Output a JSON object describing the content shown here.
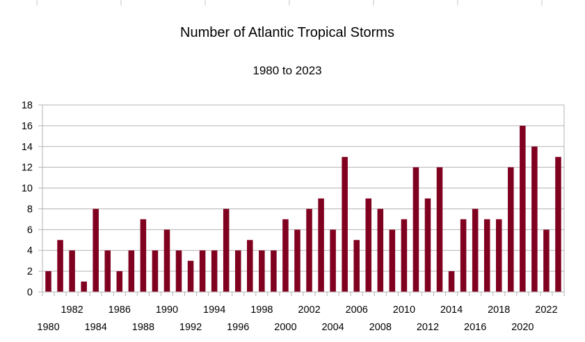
{
  "chart_data": {
    "type": "bar",
    "title": "Number of Atlantic Tropical Storms",
    "subtitle": "1980 to 2023",
    "xlabel": "",
    "ylabel": "",
    "ylim": [
      0,
      18
    ],
    "yticks": [
      0,
      2,
      4,
      6,
      8,
      10,
      12,
      14,
      16,
      18
    ],
    "grid": true,
    "legend": "none",
    "bar_color": "#800020",
    "categories": [
      "1980",
      "1981",
      "1982",
      "1983",
      "1984",
      "1985",
      "1986",
      "1987",
      "1988",
      "1989",
      "1990",
      "1991",
      "1992",
      "1993",
      "1994",
      "1995",
      "1996",
      "1997",
      "1998",
      "1999",
      "2000",
      "2001",
      "2002",
      "2003",
      "2004",
      "2005",
      "2006",
      "2007",
      "2008",
      "2009",
      "2010",
      "2011",
      "2012",
      "2013",
      "2014",
      "2015",
      "2016",
      "2017",
      "2018",
      "2019",
      "2020",
      "2021",
      "2022",
      "2023"
    ],
    "values": [
      2,
      5,
      4,
      1,
      8,
      4,
      2,
      4,
      7,
      4,
      6,
      4,
      3,
      4,
      4,
      8,
      4,
      5,
      4,
      4,
      7,
      6,
      8,
      9,
      6,
      13,
      5,
      9,
      8,
      6,
      7,
      12,
      9,
      12,
      2,
      7,
      8,
      7,
      7,
      12,
      16,
      14,
      6,
      13
    ],
    "xtick_labels_lower": [
      "1980",
      "1984",
      "1988",
      "1992",
      "1996",
      "2000",
      "2004",
      "2008",
      "2012",
      "2016",
      "2020"
    ],
    "xtick_labels_upper": [
      "1982",
      "1986",
      "1990",
      "1994",
      "1998",
      "2002",
      "2006",
      "2010",
      "2014",
      "2018",
      "2022"
    ]
  }
}
